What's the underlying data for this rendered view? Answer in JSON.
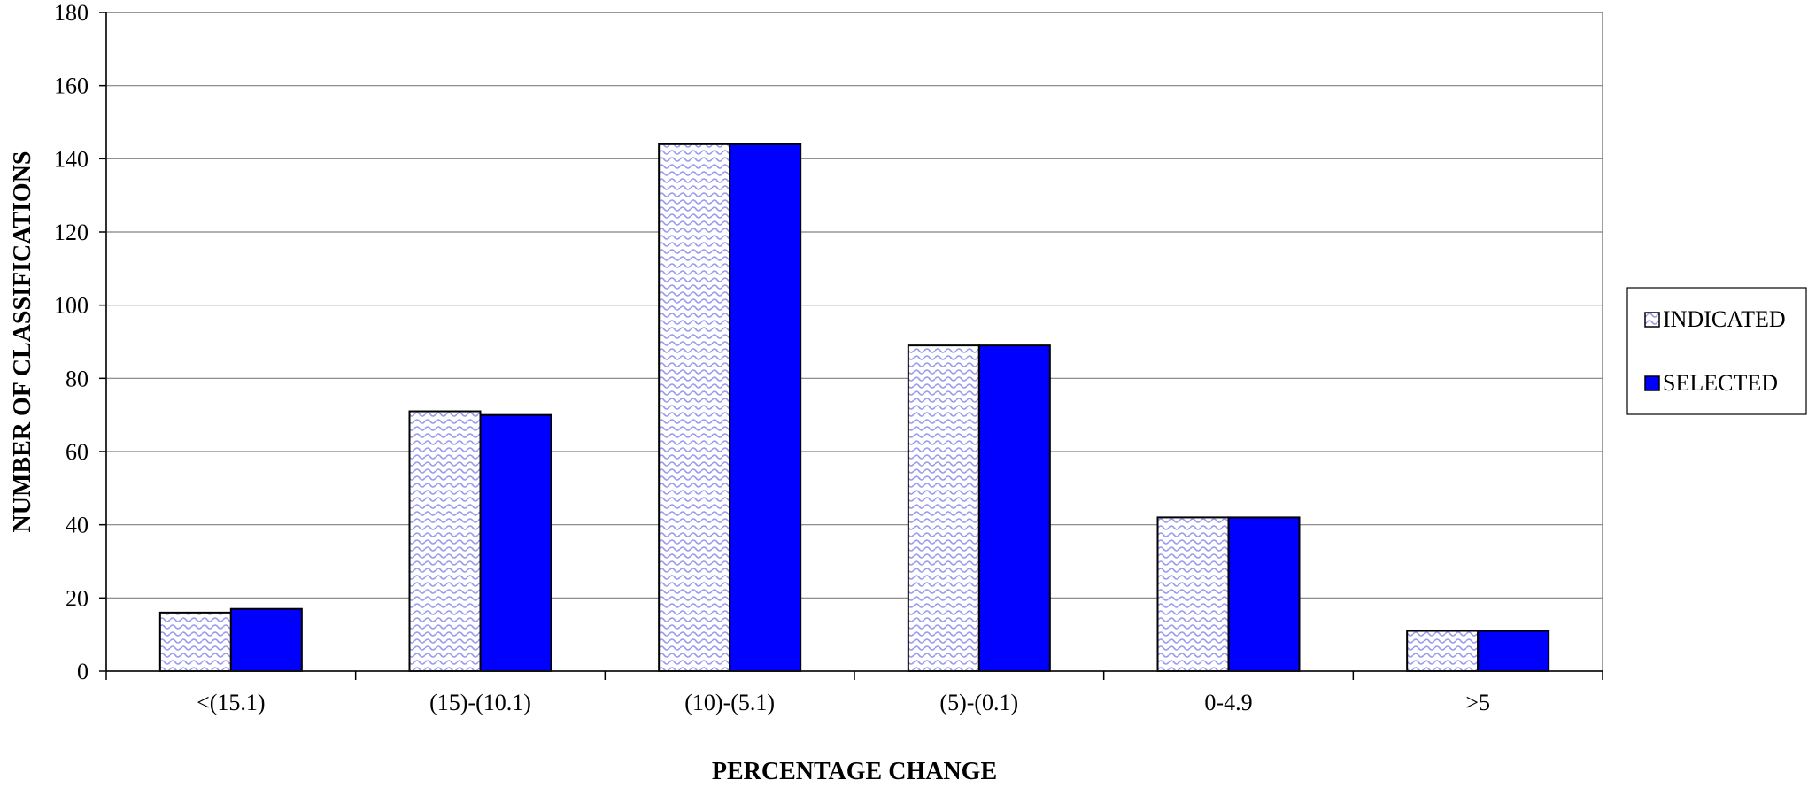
{
  "chart_data": {
    "type": "bar",
    "categories": [
      "<(15.1)",
      "(15)-(10.1)",
      "(10)-(5.1)",
      "(5)-(0.1)",
      "0-4.9",
      ">5"
    ],
    "series": [
      {
        "name": "INDICATED",
        "values": [
          16,
          71,
          144,
          89,
          42,
          11
        ],
        "color": "#ccccff",
        "pattern": "wave"
      },
      {
        "name": "SELECTED",
        "values": [
          17,
          70,
          144,
          89,
          42,
          11
        ],
        "color": "#0000ff",
        "pattern": "solid"
      }
    ],
    "title": "",
    "xlabel": "PERCENTAGE CHANGE",
    "ylabel": "NUMBER OF CLASSIFICATIONS",
    "ylim": [
      0,
      180
    ],
    "yticks": [
      0,
      20,
      40,
      60,
      80,
      100,
      120,
      140,
      160,
      180
    ],
    "grid": true,
    "legend_position": "right"
  }
}
